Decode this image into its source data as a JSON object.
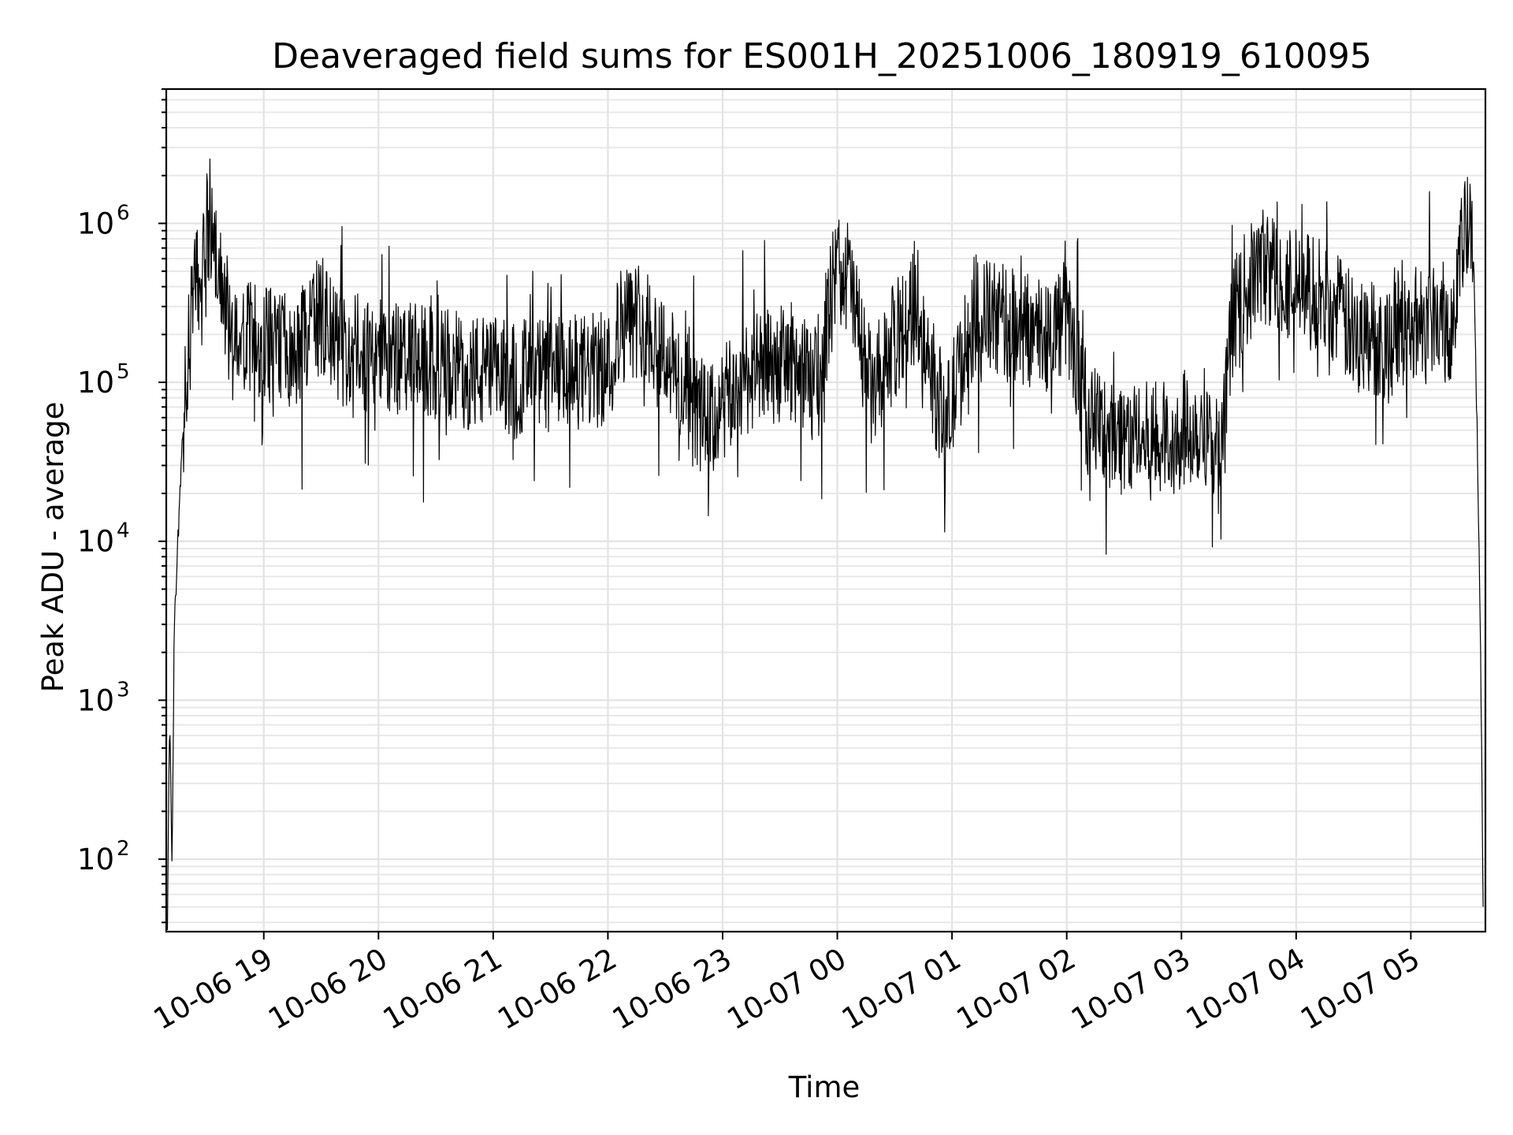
{
  "chart_data": {
    "type": "line",
    "title": "Deaveraged field sums for ES001H_20251006_180919_610095",
    "xlabel": "Time",
    "ylabel": "Peak ADU - average",
    "yscale": "log",
    "ylim": [
      35,
      7000000
    ],
    "xlim_hours": [
      18.15,
      29.65
    ],
    "grid": true,
    "line_color": "#000000",
    "x_ticks": [
      {
        "label": "10-06 19",
        "hour": 19
      },
      {
        "label": "10-06 20",
        "hour": 20
      },
      {
        "label": "10-06 21",
        "hour": 21
      },
      {
        "label": "10-06 22",
        "hour": 22
      },
      {
        "label": "10-06 23",
        "hour": 23
      },
      {
        "label": "10-07 00",
        "hour": 24
      },
      {
        "label": "10-07 01",
        "hour": 25
      },
      {
        "label": "10-07 02",
        "hour": 26
      },
      {
        "label": "10-07 03",
        "hour": 27
      },
      {
        "label": "10-07 04",
        "hour": 28
      },
      {
        "label": "10-07 05",
        "hour": 29
      }
    ],
    "y_ticks": [
      {
        "base": "10",
        "exp": "2",
        "value": 100
      },
      {
        "base": "10",
        "exp": "3",
        "value": 1000
      },
      {
        "base": "10",
        "exp": "4",
        "value": 10000
      },
      {
        "base": "10",
        "exp": "5",
        "value": 100000
      },
      {
        "base": "10",
        "exp": "6",
        "value": 1000000
      }
    ],
    "series": [
      {
        "name": "field sum",
        "x_hours": [
          18.16,
          18.18,
          18.2,
          18.22,
          18.25,
          18.3,
          18.35,
          18.4,
          18.45,
          18.5,
          18.55,
          18.6,
          18.65,
          18.7,
          18.8,
          19.0,
          19.3,
          19.5,
          19.6,
          19.7,
          20.0,
          20.5,
          21.0,
          21.5,
          22.0,
          22.1,
          22.3,
          22.5,
          22.7,
          22.9,
          23.2,
          23.6,
          23.8,
          24.0,
          24.1,
          24.3,
          24.5,
          24.7,
          24.85,
          24.95,
          25.2,
          25.5,
          25.8,
          26.0,
          26.2,
          26.5,
          26.8,
          27.0,
          27.2,
          27.35,
          27.45,
          27.7,
          28.0,
          28.3,
          28.5,
          28.8,
          29.0,
          29.2,
          29.35,
          29.45,
          29.5,
          29.55,
          29.58,
          29.61,
          29.62,
          29.63
        ],
        "y_values": [
          40,
          850,
          90,
          3000,
          10000,
          60000,
          200000,
          400000,
          700000,
          1000000,
          900000,
          650000,
          380000,
          250000,
          200000,
          190000,
          170000,
          300000,
          200000,
          170000,
          160000,
          140000,
          120000,
          120000,
          130000,
          250000,
          280000,
          170000,
          80000,
          60000,
          120000,
          150000,
          100000,
          600000,
          500000,
          90000,
          200000,
          350000,
          100000,
          60000,
          300000,
          250000,
          220000,
          280000,
          60000,
          50000,
          45000,
          55000,
          60000,
          35000,
          300000,
          600000,
          450000,
          350000,
          220000,
          200000,
          250000,
          300000,
          250000,
          800000,
          1000000,
          600000,
          40000,
          1500,
          300,
          50
        ]
      }
    ]
  }
}
